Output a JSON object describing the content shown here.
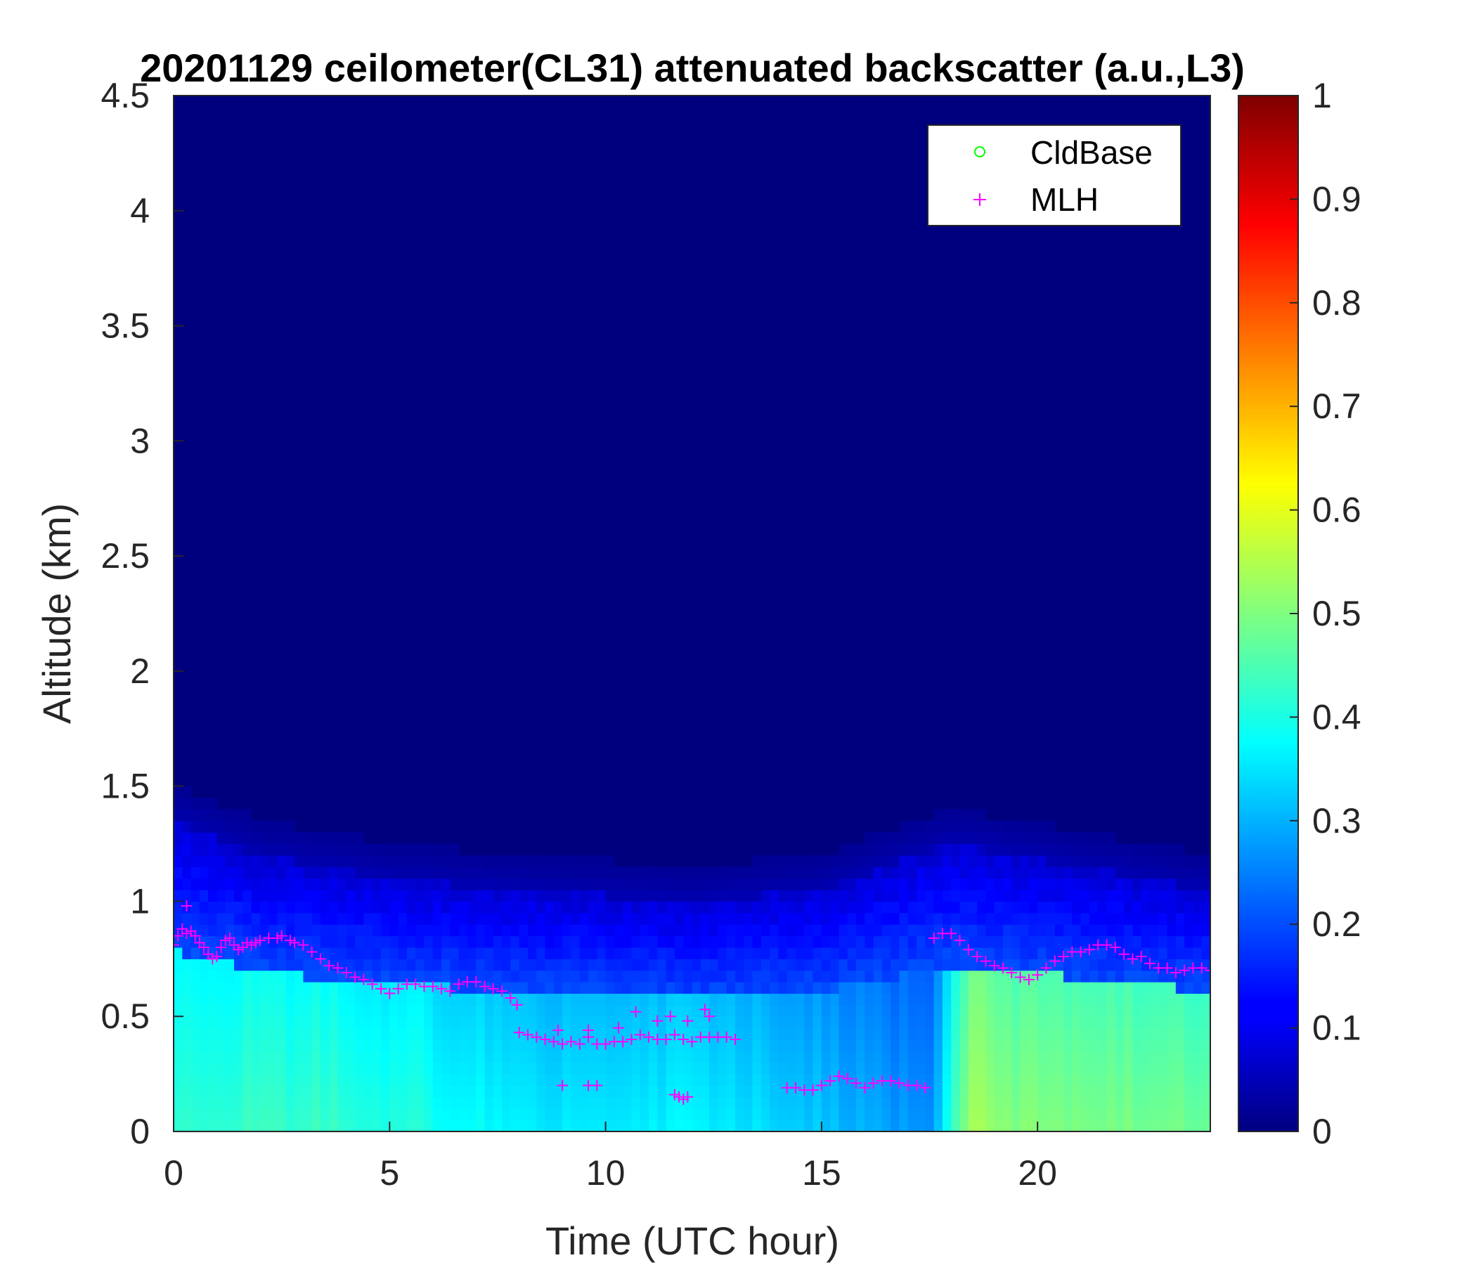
{
  "chart_data": {
    "type": "heatmap",
    "title": "20201129 ceilometer(CL31) attenuated backscatter (a.u.,L3)",
    "xlabel": "Time (UTC hour)",
    "ylabel": "Altitude (km)",
    "xlim": [
      0,
      24
    ],
    "ylim": [
      0,
      4.5
    ],
    "xticks": [
      0,
      5,
      10,
      15,
      20
    ],
    "xtick_labels": [
      "0",
      "5",
      "10",
      "15",
      "20"
    ],
    "yticks": [
      0,
      0.5,
      1,
      1.5,
      2,
      2.5,
      3,
      3.5,
      4,
      4.5
    ],
    "ytick_labels": [
      "0",
      "0.5",
      "1",
      "1.5",
      "2",
      "2.5",
      "3",
      "3.5",
      "4",
      "4.5"
    ],
    "colorbar": {
      "colormap": "jet",
      "range": [
        0,
        1
      ],
      "ticks": [
        0,
        0.1,
        0.2,
        0.3,
        0.4,
        0.5,
        0.6,
        0.7,
        0.8,
        0.9,
        1
      ],
      "tick_labels": [
        "0",
        "0.1",
        "0.2",
        "0.3",
        "0.4",
        "0.5",
        "0.6",
        "0.7",
        "0.8",
        "0.9",
        "1"
      ]
    },
    "legend": {
      "placement": "top-right",
      "entries": [
        {
          "name": "CldBase",
          "marker": "circle",
          "color": "#00ff00"
        },
        {
          "name": "MLH",
          "marker": "plus",
          "color": "#ff00ff"
        }
      ]
    },
    "series": [
      {
        "name": "MLH",
        "marker": "plus",
        "color": "#ff00ff",
        "x": [
          0.0,
          0.1,
          0.2,
          0.3,
          0.4,
          0.5,
          0.6,
          0.7,
          0.8,
          0.9,
          1.0,
          1.1,
          1.2,
          1.3,
          1.4,
          1.5,
          1.6,
          1.7,
          1.8,
          1.9,
          2.0,
          2.2,
          2.4,
          2.5,
          2.7,
          2.8,
          3.0,
          3.2,
          3.4,
          3.6,
          3.8,
          4.0,
          4.2,
          4.4,
          4.6,
          4.8,
          5.0,
          5.2,
          5.4,
          5.6,
          5.8,
          6.0,
          6.2,
          6.4,
          6.6,
          6.8,
          7.0,
          7.2,
          7.4,
          7.6,
          7.8,
          7.95,
          8.0,
          8.2,
          8.4,
          8.6,
          8.8,
          9.0,
          9.2,
          9.4,
          9.6,
          9.8,
          10.0,
          10.2,
          10.4,
          10.6,
          10.8,
          11.0,
          11.2,
          11.4,
          11.6,
          11.8,
          12.0,
          12.2,
          12.4,
          12.6,
          12.8,
          13.0,
          9.0,
          9.6,
          9.8,
          11.6,
          11.7,
          11.8,
          11.9,
          11.2,
          11.5,
          11.9,
          12.3,
          12.4,
          10.7,
          8.9,
          9.6,
          10.3,
          14.2,
          14.4,
          14.6,
          14.8,
          15.0,
          15.2,
          15.4,
          15.6,
          15.8,
          16.0,
          16.2,
          16.4,
          16.6,
          16.8,
          17.0,
          17.2,
          17.4,
          17.6,
          17.8,
          18.0,
          18.2,
          18.4,
          18.6,
          18.8,
          19.0,
          19.2,
          19.4,
          19.6,
          19.8,
          20.0,
          20.2,
          20.4,
          20.6,
          20.8,
          21.0,
          21.2,
          21.4,
          21.6,
          21.8,
          22.0,
          22.2,
          22.4,
          22.6,
          22.8,
          23.0,
          23.2,
          23.4,
          23.6,
          23.8,
          24.0,
          0.3
        ],
        "y": [
          0.81,
          0.85,
          0.88,
          0.86,
          0.87,
          0.85,
          0.82,
          0.8,
          0.77,
          0.75,
          0.76,
          0.8,
          0.83,
          0.84,
          0.81,
          0.79,
          0.8,
          0.82,
          0.81,
          0.82,
          0.83,
          0.84,
          0.84,
          0.85,
          0.83,
          0.82,
          0.81,
          0.78,
          0.75,
          0.72,
          0.71,
          0.69,
          0.67,
          0.66,
          0.64,
          0.62,
          0.6,
          0.62,
          0.64,
          0.64,
          0.63,
          0.63,
          0.62,
          0.61,
          0.64,
          0.65,
          0.65,
          0.63,
          0.62,
          0.61,
          0.58,
          0.55,
          0.43,
          0.42,
          0.41,
          0.4,
          0.39,
          0.38,
          0.39,
          0.38,
          0.41,
          0.38,
          0.38,
          0.39,
          0.39,
          0.4,
          0.42,
          0.41,
          0.4,
          0.4,
          0.42,
          0.4,
          0.39,
          0.41,
          0.41,
          0.41,
          0.41,
          0.4,
          0.2,
          0.2,
          0.2,
          0.16,
          0.15,
          0.14,
          0.15,
          0.48,
          0.5,
          0.48,
          0.53,
          0.5,
          0.52,
          0.44,
          0.44,
          0.45,
          0.19,
          0.19,
          0.18,
          0.18,
          0.2,
          0.22,
          0.24,
          0.23,
          0.21,
          0.19,
          0.21,
          0.22,
          0.22,
          0.21,
          0.2,
          0.2,
          0.19,
          0.84,
          0.86,
          0.86,
          0.83,
          0.79,
          0.76,
          0.74,
          0.72,
          0.71,
          0.69,
          0.67,
          0.66,
          0.68,
          0.71,
          0.74,
          0.76,
          0.78,
          0.78,
          0.79,
          0.81,
          0.81,
          0.8,
          0.77,
          0.75,
          0.76,
          0.73,
          0.71,
          0.71,
          0.69,
          0.7,
          0.71,
          0.71,
          0.7,
          0.98
        ]
      },
      {
        "name": "CldBase",
        "marker": "circle",
        "color": "#00ff00",
        "x": [],
        "y": []
      }
    ],
    "field": {
      "description_of_values": "attenuated backscatter (a.u.)",
      "surface_layer_top_km": [
        [
          0,
          1.35
        ],
        [
          2,
          1.2
        ],
        [
          5,
          1.1
        ],
        [
          8,
          1.05
        ],
        [
          12,
          1.0
        ],
        [
          15,
          1.05
        ],
        [
          18,
          1.25
        ],
        [
          21,
          1.15
        ],
        [
          24,
          1.05
        ]
      ],
      "surface_values": [
        [
          0,
          0.42
        ],
        [
          3,
          0.43
        ],
        [
          6,
          0.4
        ],
        [
          8,
          0.36
        ],
        [
          12,
          0.37
        ],
        [
          14,
          0.34
        ],
        [
          17.5,
          0.26
        ],
        [
          18.5,
          0.55
        ],
        [
          19.5,
          0.5
        ],
        [
          21.5,
          0.5
        ],
        [
          24,
          0.48
        ]
      ]
    }
  }
}
